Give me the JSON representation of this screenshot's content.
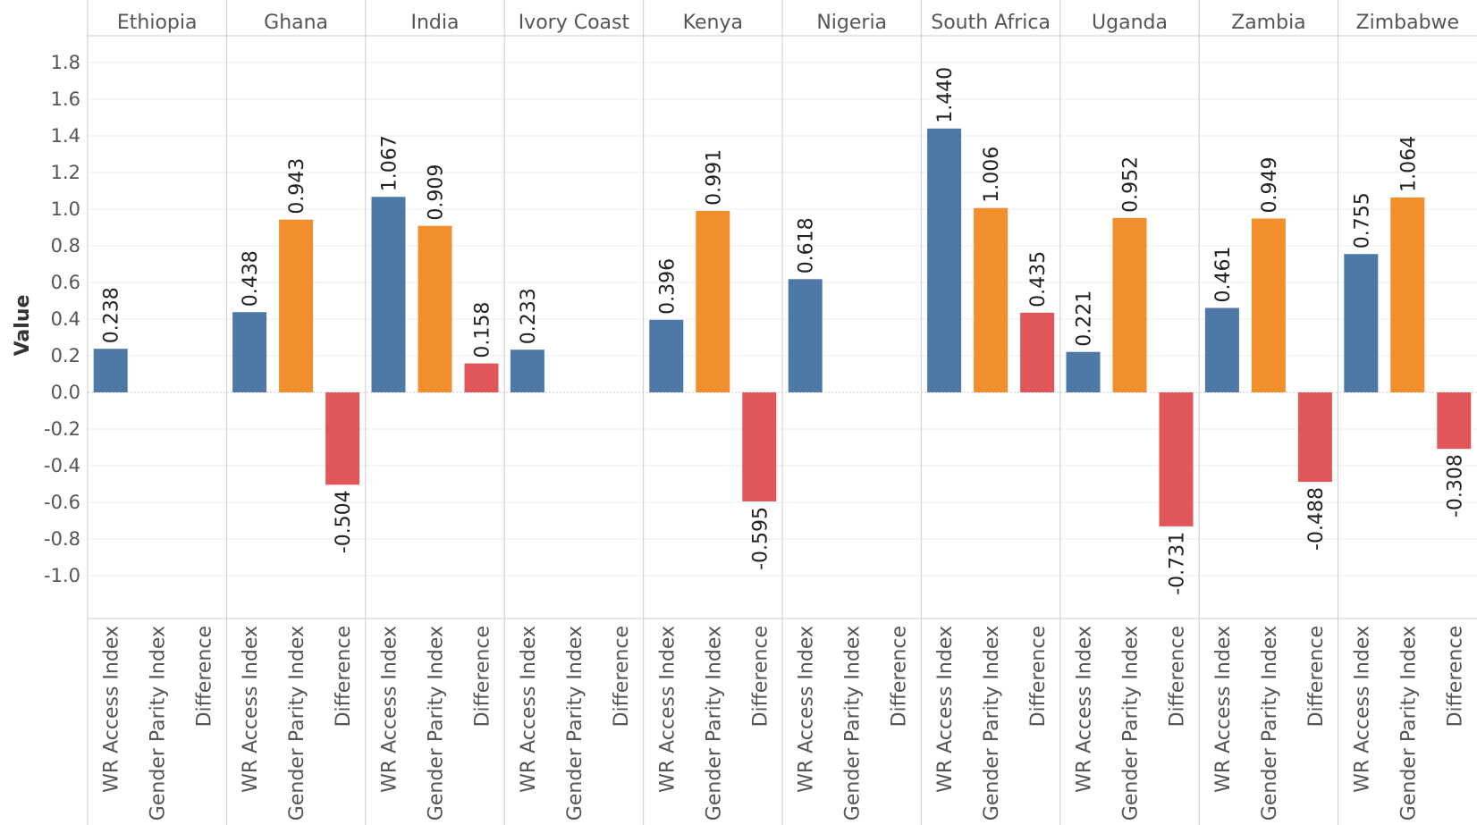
{
  "chart_data": {
    "type": "bar",
    "ylabel": "Value",
    "ylim": [
      -1.2,
      1.9
    ],
    "yticks": [
      1.8,
      1.6,
      1.4,
      1.2,
      1.0,
      0.8,
      0.6,
      0.4,
      0.2,
      0.0,
      -0.2,
      -0.4,
      -0.6,
      -0.8,
      -1.0
    ],
    "ytick_labels": [
      "1.8",
      "1.6",
      "1.4",
      "1.2",
      "1.0",
      "0.8",
      "0.6",
      "0.4",
      "0.2",
      "0.0",
      "-0.2",
      "-0.4",
      "-0.6",
      "-0.8",
      "-1.0"
    ],
    "grid": true,
    "legend": "none",
    "measures": [
      "WR Access Index",
      "Gender Parity Index",
      "Difference"
    ],
    "colors": [
      "#4e79a7",
      "#f28e2b",
      "#e15759"
    ],
    "groups": [
      {
        "name": "Ethiopia",
        "values": [
          0.238,
          null,
          null
        ],
        "labels": [
          "0.238",
          "",
          ""
        ]
      },
      {
        "name": "Ghana",
        "values": [
          0.438,
          0.943,
          -0.504
        ],
        "labels": [
          "0.438",
          "0.943",
          "-0.504"
        ]
      },
      {
        "name": "India",
        "values": [
          1.067,
          0.909,
          0.158
        ],
        "labels": [
          "1.067",
          "0.909",
          "0.158"
        ]
      },
      {
        "name": "Ivory Coast",
        "values": [
          0.233,
          null,
          null
        ],
        "labels": [
          "0.233",
          "",
          ""
        ]
      },
      {
        "name": "Kenya",
        "values": [
          0.396,
          0.991,
          -0.595
        ],
        "labels": [
          "0.396",
          "0.991",
          "-0.595"
        ]
      },
      {
        "name": "Nigeria",
        "values": [
          0.618,
          null,
          null
        ],
        "labels": [
          "0.618",
          "",
          ""
        ]
      },
      {
        "name": "South Africa",
        "values": [
          1.44,
          1.006,
          0.435
        ],
        "labels": [
          "1.440",
          "1.006",
          "0.435"
        ]
      },
      {
        "name": "Uganda",
        "values": [
          0.221,
          0.952,
          -0.731
        ],
        "labels": [
          "0.221",
          "0.952",
          "-0.731"
        ]
      },
      {
        "name": "Zambia",
        "values": [
          0.461,
          0.949,
          -0.488
        ],
        "labels": [
          "0.461",
          "0.949",
          "-0.488"
        ]
      },
      {
        "name": "Zimbabwe",
        "values": [
          0.755,
          1.064,
          -0.308
        ],
        "labels": [
          "0.755",
          "1.064",
          "-0.308"
        ]
      }
    ]
  }
}
